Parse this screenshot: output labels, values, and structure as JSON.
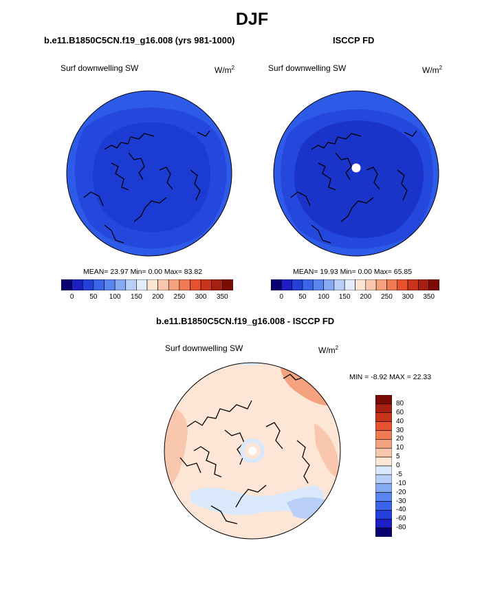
{
  "page_title": "DJF",
  "panel_left": {
    "case_title": "b.e11.B1850C5CN.f19_g16.008 (yrs 981-1000)",
    "variable": "Surf downwelling SW",
    "units_base": "W/m",
    "units_sup": "2",
    "stats": "MEAN=  23.97  Min=   0.00  Max=  83.82",
    "colorbar_ticks": [
      "0",
      "50",
      "100",
      "150",
      "200",
      "250",
      "300",
      "350"
    ]
  },
  "panel_right": {
    "case_title": "ISCCP FD",
    "variable": "Surf downwelling SW",
    "units_base": "W/m",
    "units_sup": "2",
    "stats": "MEAN=  19.93  Min=   0.00  Max=  65.85",
    "colorbar_ticks": [
      "0",
      "50",
      "100",
      "150",
      "200",
      "250",
      "300",
      "350"
    ]
  },
  "panel_diff": {
    "case_title": "b.e11.B1850C5CN.f19_g16.008 - ISCCP FD",
    "variable": "Surf downwelling SW",
    "units_base": "W/m",
    "units_sup": "2",
    "stats": "MIN =  -8.92 MAX =  22.33",
    "colorbar_ticks": [
      "80",
      "60",
      "40",
      "30",
      "20",
      "10",
      "5",
      "0",
      "-5",
      "-10",
      "-20",
      "-30",
      "-40",
      "-60",
      "-80"
    ]
  },
  "colors": {
    "abs_scale": [
      "#08006e",
      "#1c1fc4",
      "#2340db",
      "#3a64ea",
      "#5a84ee",
      "#86aaf2",
      "#b9cff7",
      "#e2ecfa",
      "#fbe6d6",
      "#f8c7ad",
      "#f5a37e",
      "#f07a52",
      "#e6522d",
      "#c9341c",
      "#a51f12",
      "#7b0b05"
    ],
    "diff_scale": [
      "#7b0b05",
      "#a51f12",
      "#c9341c",
      "#e6522d",
      "#f07a52",
      "#f5a37e",
      "#f8c7ad",
      "#fde6d6",
      "#d9e8fb",
      "#b9cff7",
      "#86aaf2",
      "#5a84ee",
      "#3a64ea",
      "#2340db",
      "#1c1fc4",
      "#08006e"
    ],
    "map_outer": "#2d5ae6",
    "map_inner": "#1c3bd3",
    "map_inner_right": "#1a33c8",
    "diff_base": "#fde6d6"
  }
}
